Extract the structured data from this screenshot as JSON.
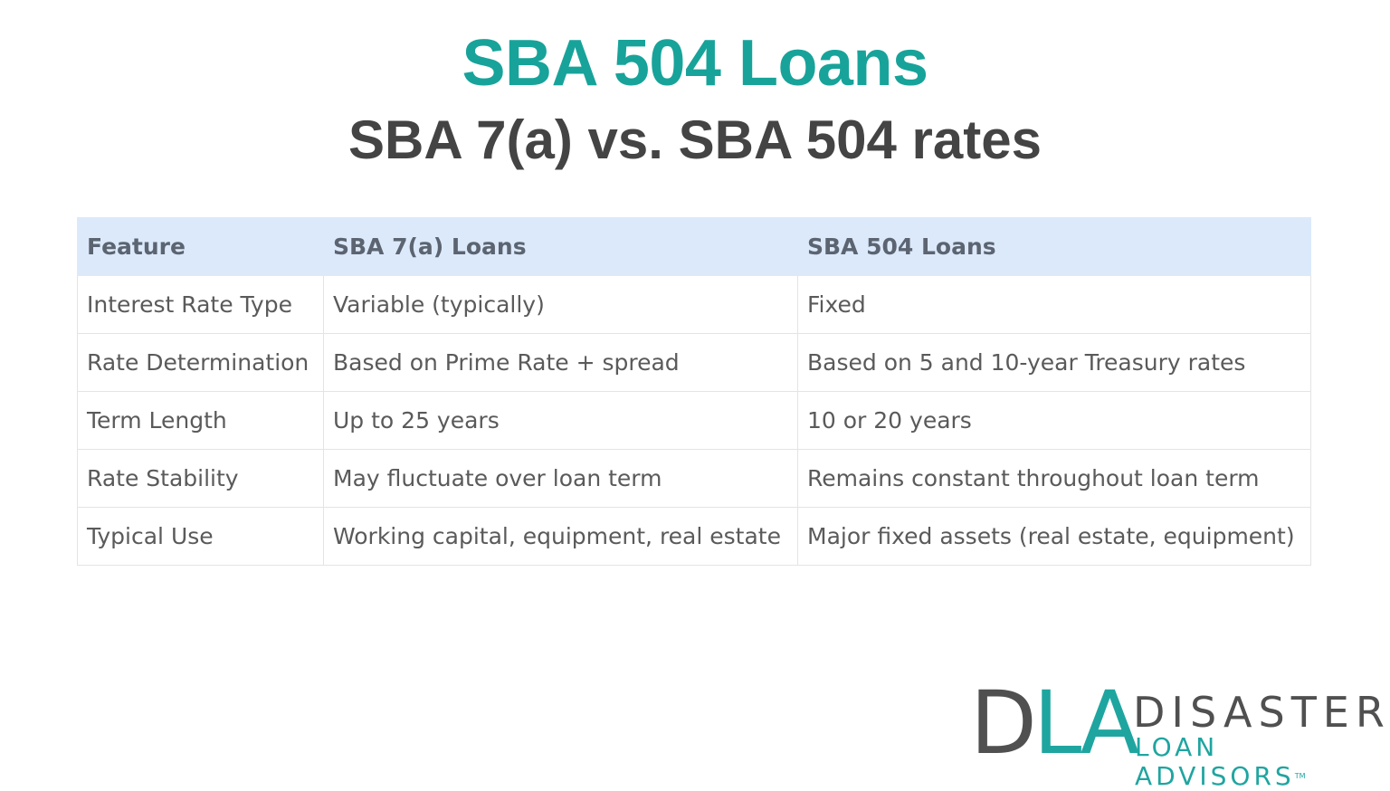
{
  "title": "SBA 504 Loans",
  "subtitle": "SBA 7(a) vs. SBA 504 rates",
  "table": {
    "headers": [
      "Feature",
      "SBA 7(a) Loans",
      "SBA 504 Loans"
    ],
    "rows": [
      [
        "Interest Rate Type",
        "Variable (typically)",
        "Fixed"
      ],
      [
        "Rate Determination",
        "Based on Prime Rate + spread",
        "Based on 5 and 10-year Treasury rates"
      ],
      [
        "Term Length",
        "Up to 25 years",
        "10 or 20 years"
      ],
      [
        "Rate Stability",
        "May fluctuate over loan term",
        "Remains constant throughout loan term"
      ],
      [
        "Typical Use",
        "Working capital, equipment, real estate",
        "Major fixed assets (real estate, equipment)"
      ]
    ]
  },
  "logo": {
    "mark_d": "D",
    "mark_la": "LA",
    "line1": "DISASTER",
    "line2": "LOAN ADVISORS",
    "tm": "TM"
  },
  "colors": {
    "accent": "#17a39a",
    "heading": "#444444",
    "header_bg": "#dce9fb"
  }
}
